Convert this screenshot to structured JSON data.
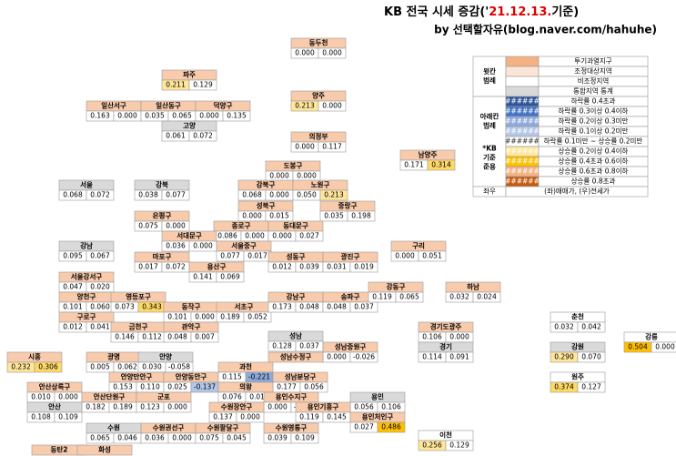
{
  "title": [
    {
      "text": "KB 전국 시세 증감('",
      "color": "#000000"
    },
    {
      "text": "21.12.13.",
      "color": "#e00000"
    },
    {
      "text": "기준)",
      "color": "#000000"
    }
  ],
  "subtitle": "by 선택할자유(blog.naver.com/hahuhe)",
  "legend": {
    "top_label": [
      "윗칸",
      "범례"
    ],
    "top": [
      {
        "label": "투기과열지구",
        "color": "#f4b183"
      },
      {
        "label": "조정대상지역",
        "color": "#fbe5d6"
      },
      {
        "label": "비조정지역",
        "color": "#ffffff"
      },
      {
        "label": "통합지역 통계",
        "color": "#d9d9d9"
      }
    ],
    "bottom_labels": [
      [
        "아래칸",
        "범례"
      ],
      [
        "*KB",
        "기준",
        "준용"
      ]
    ],
    "bottom": [
      {
        "swatch": "######",
        "label": "하락률 0.4초과",
        "color": "#2f5597"
      },
      {
        "swatch": "######",
        "label": "하락률 0.3이상 0.4이하",
        "color": "#4472c4"
      },
      {
        "swatch": "######",
        "label": "하락률 0.2이상 0.3미만",
        "color": "#8eaadb"
      },
      {
        "swatch": "######",
        "label": "하락률 0.1이상 0.2미만",
        "color": "#b4c6e7"
      },
      {
        "swatch": "######",
        "label": "하락률 0.1미만 ~ 상승률 0.2미만",
        "color": "#ffffff"
      },
      {
        "swatch": "######",
        "label": "상승률 0.2이상 0.4이하",
        "color": "#ffe699"
      },
      {
        "swatch": "######",
        "label": "상승률 0.4초과 0.6이하",
        "color": "#ffc000"
      },
      {
        "swatch": "######",
        "label": "상승률 0.6초과 0.8이하",
        "color": "#f4b183"
      },
      {
        "swatch": "######",
        "label": "상승률 0.8초과",
        "color": "#c55a11"
      }
    ],
    "lr": {
      "label": "좌우",
      "text": "(좌)매매가, (우)전세가"
    }
  },
  "nodes": [
    {
      "name": "동두천",
      "color": "#f8cbad",
      "values": [
        "0.000",
        "0.000"
      ]
    },
    {
      "name": "파주",
      "color": "#f8cbad",
      "values": [
        "0.211",
        "0.129"
      ],
      "value_colors": [
        "#ffe699",
        "#ffffff"
      ]
    },
    {
      "name": "일산서구",
      "color": "#f8cbad",
      "values": [
        "0.163",
        "0.000"
      ]
    },
    {
      "name": "일산동구",
      "color": "#f8cbad",
      "values": [
        "0.035",
        "0.065"
      ]
    },
    {
      "name": "덕양구",
      "color": "#f8cbad",
      "values": [
        "0.000",
        "0.135"
      ]
    },
    {
      "name": "고양",
      "color": "#d9d9d9",
      "values": [
        "0.061",
        "0.072"
      ]
    },
    {
      "name": "양주",
      "color": "#f8cbad",
      "values": [
        "0.213",
        "0.000"
      ],
      "value_colors": [
        "#ffe699",
        "#ffffff"
      ]
    },
    {
      "name": "의정부",
      "color": "#f8cbad",
      "values": [
        "0.000",
        "0.117"
      ]
    },
    {
      "name": "남양주",
      "color": "#f8cbad",
      "values": [
        "0.171",
        "0.314"
      ],
      "value_colors": [
        "#ffffff",
        "#ffd966"
      ]
    },
    {
      "name": "도봉구",
      "color": "#f8cbad",
      "values": [
        "0.000",
        "0.000"
      ]
    },
    {
      "name": "서울",
      "color": "#d9d9d9",
      "values": [
        "0.068",
        "0.072"
      ]
    },
    {
      "name": "강북",
      "color": "#d9d9d9",
      "values": [
        "0.038",
        "0.077"
      ]
    },
    {
      "name": "강북구",
      "color": "#f8cbad",
      "values": [
        "0.068",
        "0.000"
      ]
    },
    {
      "name": "노원구",
      "color": "#f8cbad",
      "values": [
        "0.050",
        "0.213"
      ],
      "value_colors": [
        "#ffffff",
        "#ffe699"
      ]
    },
    {
      "name": "성북구",
      "color": "#f8cbad",
      "values": [
        "0.000",
        "0.015"
      ]
    },
    {
      "name": "중랑구",
      "color": "#f8cbad",
      "values": [
        "0.035",
        "0.198"
      ]
    },
    {
      "name": "은평구",
      "color": "#f8cbad",
      "values": [
        "0.075",
        "0.000"
      ]
    },
    {
      "name": "종로구",
      "color": "#f8cbad",
      "values": [
        "0.086",
        "0.000"
      ]
    },
    {
      "name": "동대문구",
      "color": "#f8cbad",
      "values": [
        "0.000",
        "0.027"
      ]
    },
    {
      "name": "서대문구",
      "color": "#f8cbad",
      "values": [
        "0.036",
        "0.000"
      ]
    },
    {
      "name": "서울중구",
      "color": "#f8cbad",
      "values": [
        "0.077",
        "0.017"
      ]
    },
    {
      "name": "강남",
      "color": "#d9d9d9",
      "values": [
        "0.095",
        "0.067"
      ]
    },
    {
      "name": "구리",
      "color": "#f8cbad",
      "values": [
        "0.000",
        "0.051"
      ]
    },
    {
      "name": "마포구",
      "color": "#f8cbad",
      "values": [
        "0.017",
        "0.072"
      ]
    },
    {
      "name": "용산구",
      "color": "#f8cbad",
      "values": [
        "0.141",
        "0.069"
      ]
    },
    {
      "name": "성동구",
      "color": "#f8cbad",
      "values": [
        "0.012",
        "0.039"
      ]
    },
    {
      "name": "광진구",
      "color": "#f8cbad",
      "values": [
        "0.031",
        "0.019"
      ]
    },
    {
      "name": "서울강서구",
      "color": "#f8cbad",
      "values": [
        "0.047",
        "0.020"
      ]
    },
    {
      "name": "양천구",
      "color": "#f8cbad",
      "values": [
        "0.101",
        "0.060"
      ]
    },
    {
      "name": "영등포구",
      "color": "#f8cbad",
      "values": [
        "0.073",
        "0.343"
      ],
      "value_colors": [
        "#ffffff",
        "#ffd966"
      ]
    },
    {
      "name": "동작구",
      "color": "#f8cbad",
      "values": [
        "0.101",
        "0.000"
      ]
    },
    {
      "name": "서초구",
      "color": "#f8cbad",
      "values": [
        "0.189",
        "0.052"
      ]
    },
    {
      "name": "강남구",
      "color": "#f8cbad",
      "values": [
        "0.173",
        "0.048"
      ]
    },
    {
      "name": "송파구",
      "color": "#f8cbad",
      "values": [
        "0.048",
        "0.037"
      ]
    },
    {
      "name": "강동구",
      "color": "#f8cbad",
      "values": [
        "0.119",
        "0.065"
      ]
    },
    {
      "name": "하남",
      "color": "#f8cbad",
      "values": [
        "0.032",
        "0.024"
      ]
    },
    {
      "name": "구로구",
      "color": "#f8cbad",
      "values": [
        "0.012",
        "0.041"
      ]
    },
    {
      "name": "금천구",
      "color": "#f8cbad",
      "values": [
        "0.146",
        "0.112"
      ]
    },
    {
      "name": "관악구",
      "color": "#f8cbad",
      "values": [
        "0.048",
        "0.007"
      ]
    },
    {
      "name": "성남",
      "color": "#d9d9d9",
      "values": [
        "0.128",
        "0.037"
      ]
    },
    {
      "name": "성남중원구",
      "color": "#f8cbad",
      "values": [
        "0.000",
        "-0.026"
      ]
    },
    {
      "name": "성남수정구",
      "color": "#f8cbad"
    },
    {
      "name": "광명",
      "color": "#f8cbad",
      "values": [
        "0.005",
        "0.062"
      ]
    },
    {
      "name": "안양",
      "color": "#d9d9d9",
      "values": [
        "0.030",
        "-0.058"
      ]
    },
    {
      "name": "시흥",
      "color": "#f8cbad",
      "values": [
        "0.232",
        "0.306"
      ],
      "value_colors": [
        "#ffe699",
        "#ffd966"
      ]
    },
    {
      "name": "안양만안구",
      "color": "#f8cbad",
      "values": [
        "0.153",
        "0.110"
      ]
    },
    {
      "name": "안양동안구",
      "color": "#f8cbad",
      "values": [
        "0.025",
        "-0.137"
      ],
      "value_colors": [
        "#ffffff",
        "#b4c6e7"
      ]
    },
    {
      "name": "과천",
      "color": "#f8cbad",
      "values": [
        "0.115",
        "-0.221"
      ],
      "value_colors": [
        "#ffffff",
        "#8eaadb"
      ]
    },
    {
      "name": "성남분당구",
      "color": "#f8cbad",
      "values": [
        "0.177",
        "0.056"
      ]
    },
    {
      "name": "의왕",
      "color": "#f8cbad",
      "values": [
        "0.076",
        "0.014"
      ]
    },
    {
      "name": "안산상록구",
      "color": "#f8cbad",
      "values": [
        "0.010",
        "0.000"
      ]
    },
    {
      "name": "안산단원구",
      "color": "#f8cbad",
      "values": [
        "0.182",
        "0.189"
      ]
    },
    {
      "name": "군포",
      "color": "#f8cbad",
      "values": [
        "0.123",
        "0.000"
      ]
    },
    {
      "name": "용인수지구",
      "color": "#f8cbad",
      "values": [
        "0.000",
        "-0.012"
      ]
    },
    {
      "name": "수원장안구",
      "color": "#f8cbad",
      "values": [
        "0.137",
        "0.000"
      ]
    },
    {
      "name": "용인",
      "color": "#d9d9d9",
      "values": [
        "0.056",
        "0.106"
      ]
    },
    {
      "name": "용인기흥구",
      "color": "#f8cbad",
      "values": [
        "0.119",
        "0.145"
      ]
    },
    {
      "name": "안산",
      "color": "#d9d9d9",
      "values": [
        "0.108",
        "0.109"
      ]
    },
    {
      "name": "용인처인구",
      "color": "#f8cbad",
      "values": [
        "0.027",
        "0.486"
      ],
      "value_colors": [
        "#ffffff",
        "#ffc000"
      ]
    },
    {
      "name": "수원",
      "color": "#d9d9d9",
      "values": [
        "0.065",
        "0.046"
      ]
    },
    {
      "name": "수원권선구",
      "color": "#f8cbad",
      "values": [
        "0.036",
        "0.000"
      ]
    },
    {
      "name": "수원팔달구",
      "color": "#f8cbad",
      "values": [
        "0.075",
        "0.045"
      ]
    },
    {
      "name": "수원영통구",
      "color": "#f8cbad",
      "values": [
        "0.039",
        "0.109"
      ]
    },
    {
      "name": "경기도광주",
      "color": "#f8cbad",
      "values": [
        "0.106",
        "0.000"
      ]
    },
    {
      "name": "경기",
      "color": "#d9d9d9",
      "values": [
        "0.114",
        "0.091"
      ]
    },
    {
      "name": "춘천",
      "color": "#ffffff",
      "values": [
        "0.032",
        "0.042"
      ]
    },
    {
      "name": "강원",
      "color": "#d9d9d9",
      "values": [
        "0.290",
        "0.070"
      ],
      "value_colors": [
        "#ffe699",
        "#ffffff"
      ]
    },
    {
      "name": "원주",
      "color": "#ffffff",
      "values": [
        "0.374",
        "0.127"
      ],
      "value_colors": [
        "#ffd966",
        "#ffffff"
      ]
    },
    {
      "name": "강릉",
      "color": "#ffffff",
      "values": [
        "0.504",
        "0.000"
      ],
      "value_colors": [
        "#ffc000",
        "#ffffff"
      ]
    },
    {
      "name": "이천",
      "color": "#ffffff",
      "values": [
        "0.256",
        "0.129"
      ],
      "value_colors": [
        "#ffe699",
        "#ffffff"
      ]
    },
    {
      "name": "동탄2",
      "color": "#f8cbad"
    },
    {
      "name": "화성",
      "color": "#f8cbad"
    }
  ]
}
